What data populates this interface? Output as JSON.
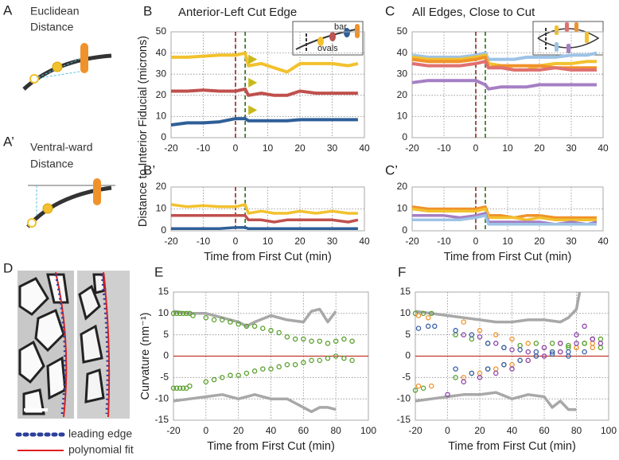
{
  "panels": {
    "A": {
      "letter": "A",
      "text": [
        "Euclidean",
        "Distance"
      ]
    },
    "A2": {
      "letter": "A’",
      "text": [
        "Ventral-ward",
        "Distance"
      ]
    },
    "D": {
      "letter": "D",
      "legend": [
        "leading edge",
        "polynomial fit"
      ]
    }
  },
  "chart_data": [
    {
      "panel": "B",
      "type": "line",
      "title": "Anterior-Left Cut Edge",
      "ylabel": "Distance to Interior Fiducial (microns)",
      "inset_labels": [
        "bar",
        "ovals"
      ],
      "x": [
        -20,
        -15,
        -10,
        -5,
        0,
        3,
        4,
        8,
        12,
        16,
        20,
        25,
        30,
        35,
        38
      ],
      "series": [
        {
          "color": "#f2c12e",
          "values": [
            38,
            38,
            38.5,
            39,
            39,
            40,
            34,
            35,
            33,
            31,
            35,
            35,
            35,
            34,
            35
          ]
        },
        {
          "color": "#c0504d",
          "values": [
            22,
            22,
            22.5,
            22,
            22,
            23,
            20,
            21,
            20,
            20,
            22,
            21,
            21,
            21,
            21
          ]
        },
        {
          "color": "#2f5f98",
          "values": [
            6,
            7,
            7,
            7.5,
            9,
            9,
            8,
            8,
            8,
            8,
            8.5,
            8.5,
            8.5,
            8.5,
            8.5
          ]
        }
      ],
      "markers": {
        "color": "#c9b81a",
        "x": [
          4,
          4,
          4
        ],
        "values": [
          37,
          26,
          13
        ]
      },
      "cut_lines": [
        {
          "x": 0,
          "color": "#8b2a1a"
        },
        {
          "x": 3,
          "color": "#2e6b1e"
        }
      ],
      "xlim": [
        -20,
        40
      ],
      "xticks": [
        -20,
        -10,
        0,
        10,
        20,
        30,
        40
      ],
      "ylim": [
        0,
        50
      ],
      "yticks": [
        0,
        10,
        20,
        30,
        40,
        50
      ],
      "grid": true
    },
    {
      "panel": "C",
      "type": "line",
      "title": "All Edges, Close to Cut",
      "x": [
        -20,
        -15,
        -10,
        -5,
        0,
        3,
        4,
        8,
        12,
        16,
        20,
        25,
        30,
        35,
        38
      ],
      "series": [
        {
          "color": "#9dc3e6",
          "values": [
            39,
            38,
            38,
            38,
            39,
            40,
            37,
            37,
            37,
            38,
            38,
            38,
            39,
            39,
            40
          ]
        },
        {
          "color": "#f2c12e",
          "values": [
            38,
            37,
            37,
            37,
            38,
            39,
            35,
            34,
            32,
            32,
            34,
            35,
            35,
            36,
            36
          ]
        },
        {
          "color": "#f0922b",
          "values": [
            37,
            36,
            36,
            36,
            37,
            38,
            33,
            34,
            34,
            34,
            34,
            33,
            33,
            33,
            33
          ]
        },
        {
          "color": "#e07070",
          "values": [
            35,
            34,
            34,
            34,
            35,
            36,
            33,
            33,
            32,
            32,
            32,
            33,
            32,
            32,
            32
          ]
        },
        {
          "color": "#a57fc4",
          "values": [
            26,
            27,
            27,
            27,
            27,
            25,
            23,
            24,
            24,
            24,
            25,
            25,
            25,
            25,
            25
          ]
        }
      ],
      "cut_lines": [
        {
          "x": 0,
          "color": "#8b2a1a"
        },
        {
          "x": 3,
          "color": "#2e6b1e"
        }
      ],
      "xlim": [
        -20,
        40
      ],
      "xticks": [
        -20,
        -10,
        0,
        10,
        20,
        30,
        40
      ],
      "ylim": [
        0,
        50
      ],
      "yticks": [
        0,
        10,
        20,
        30,
        40,
        50
      ],
      "grid": true
    },
    {
      "panel": "B’",
      "type": "line",
      "xlabel": "Time from First Cut (min)",
      "x": [
        -20,
        -15,
        -10,
        -5,
        0,
        3,
        4,
        8,
        12,
        16,
        20,
        25,
        30,
        35,
        38
      ],
      "series": [
        {
          "color": "#f2c12e",
          "values": [
            12,
            11,
            11.5,
            11,
            11,
            12,
            8,
            9,
            8,
            8,
            9,
            8,
            9,
            8,
            8
          ]
        },
        {
          "color": "#c0504d",
          "values": [
            7,
            7,
            7,
            7,
            7,
            7,
            5,
            5,
            4,
            5,
            5,
            5,
            5,
            4,
            5
          ]
        },
        {
          "color": "#2f5f98",
          "values": [
            1,
            1,
            1,
            1,
            1.5,
            1.5,
            1,
            1,
            1,
            1,
            1,
            1,
            1,
            1,
            1
          ]
        }
      ],
      "cut_lines": [
        {
          "x": 0,
          "color": "#8b2a1a"
        },
        {
          "x": 3,
          "color": "#2e6b1e"
        }
      ],
      "xlim": [
        -20,
        40
      ],
      "xticks": [
        -20,
        -10,
        0,
        10,
        20,
        30,
        40
      ],
      "ylim": [
        0,
        20
      ],
      "yticks": [
        0,
        10,
        20
      ],
      "grid": true
    },
    {
      "panel": "C’",
      "type": "line",
      "xlabel": "Time from First Cut (min)",
      "x": [
        -20,
        -15,
        -10,
        -5,
        0,
        3,
        4,
        8,
        12,
        16,
        20,
        25,
        30,
        35,
        38
      ],
      "series": [
        {
          "color": "#f0922b",
          "values": [
            11,
            10,
            10,
            10,
            10,
            11,
            7,
            7,
            6,
            7,
            7,
            6,
            6,
            6,
            6
          ]
        },
        {
          "color": "#f2c12e",
          "values": [
            10,
            9,
            9,
            9,
            9,
            10,
            6,
            6,
            6,
            5,
            6,
            5,
            5,
            5,
            5
          ]
        },
        {
          "color": "#a57fc4",
          "values": [
            7,
            7,
            7,
            6,
            7,
            8,
            4,
            4,
            4,
            4,
            4,
            3,
            4,
            3,
            4
          ]
        },
        {
          "color": "#9dc3e6",
          "values": [
            5,
            5,
            5,
            5,
            6,
            7,
            3,
            3,
            3,
            3,
            3,
            3,
            3,
            3,
            3
          ]
        }
      ],
      "cut_lines": [
        {
          "x": 0,
          "color": "#8b2a1a"
        },
        {
          "x": 3,
          "color": "#2e6b1e"
        }
      ],
      "xlim": [
        -20,
        40
      ],
      "xticks": [
        -20,
        -10,
        0,
        10,
        20,
        30,
        40
      ],
      "ylim": [
        0,
        20
      ],
      "yticks": [
        0,
        10,
        20
      ],
      "grid": true
    },
    {
      "panel": "E",
      "type": "scatter",
      "ylabel": "Curvature (nm⁻¹)",
      "xlabel": "Time from First Cut (min)",
      "reference_line": {
        "y": 0,
        "color": "#c0392b"
      },
      "series": [
        {
          "type": "line",
          "color": "#a8a8a8",
          "x": [
            -20,
            -10,
            0,
            10,
            20,
            25,
            30,
            40,
            50,
            60,
            65,
            70,
            75,
            80
          ],
          "values": [
            10.5,
            10,
            10,
            9,
            8,
            7,
            8,
            9.5,
            8.5,
            8,
            10.5,
            11,
            8,
            10.5
          ]
        },
        {
          "type": "line",
          "color": "#a8a8a8",
          "x": [
            -20,
            -10,
            0,
            10,
            20,
            30,
            40,
            50,
            55,
            60,
            65,
            70,
            75,
            80
          ],
          "values": [
            -10.5,
            -10,
            -9.5,
            -9,
            -10,
            -9,
            -10,
            -10,
            -11,
            -12,
            -13,
            -12,
            -12,
            -12.5
          ]
        },
        {
          "type": "scatter",
          "color": "#5aa02c",
          "x": [
            -20,
            -18,
            -16,
            -14,
            -12,
            -10,
            -8,
            0,
            5,
            10,
            15,
            20,
            25,
            30,
            35,
            40,
            45,
            50,
            55,
            60,
            65,
            70,
            75,
            80,
            85,
            90
          ],
          "values": [
            10,
            10,
            10,
            10,
            10,
            10,
            9.5,
            9,
            8.5,
            8.5,
            8,
            7.5,
            7,
            7,
            6.5,
            6,
            5.5,
            4.5,
            4,
            4,
            3.5,
            3.5,
            3,
            3.5,
            4,
            3.5
          ]
        },
        {
          "type": "scatter",
          "color": "#5aa02c",
          "x": [
            -20,
            -18,
            -16,
            -14,
            -12,
            -10,
            0,
            5,
            10,
            15,
            20,
            25,
            30,
            35,
            40,
            45,
            50,
            55,
            60,
            65,
            70,
            75,
            80,
            85,
            90
          ],
          "values": [
            -7.5,
            -7.5,
            -7.5,
            -7.5,
            -7.5,
            -7,
            -6,
            -5.5,
            -5,
            -4.5,
            -4.5,
            -4,
            -3.5,
            -3,
            -3,
            -2.5,
            -2,
            -2,
            -1.5,
            -1,
            -1,
            -0.5,
            0,
            -0.5,
            -1
          ]
        }
      ],
      "xlim": [
        -20,
        100
      ],
      "xticks": [
        -20,
        0,
        20,
        40,
        60,
        80,
        100
      ],
      "ylim": [
        -15,
        15
      ],
      "yticks": [
        -15,
        -10,
        -5,
        0,
        5,
        10,
        15
      ],
      "grid": true
    },
    {
      "panel": "F",
      "type": "scatter",
      "xlabel": "Time from First Cut (min)",
      "reference_line": {
        "y": 0,
        "color": "#c0392b"
      },
      "series": [
        {
          "type": "line",
          "color": "#a8a8a8",
          "x": [
            -20,
            -10,
            0,
            10,
            20,
            30,
            40,
            50,
            60,
            70,
            75,
            80,
            82
          ],
          "values": [
            10.5,
            10,
            9.5,
            9,
            8.5,
            8,
            8,
            8.5,
            8.5,
            8,
            9,
            11,
            15
          ]
        },
        {
          "type": "line",
          "color": "#a8a8a8",
          "x": [
            -20,
            -10,
            0,
            10,
            20,
            30,
            40,
            50,
            60,
            65,
            70,
            75,
            80
          ],
          "values": [
            -10.5,
            -10,
            -9.5,
            -9,
            -9,
            -8.5,
            -10,
            -9,
            -9.5,
            -12,
            -10.5,
            -12.5,
            -12.5
          ]
        },
        {
          "type": "scatter",
          "color": "#5aa02c",
          "x": [
            -20,
            -15,
            -10,
            5,
            15,
            25,
            35,
            45,
            55,
            65,
            75,
            85,
            95,
            -20,
            -15,
            5,
            15,
            25,
            35,
            45,
            55,
            65,
            75,
            85,
            95
          ],
          "values": [
            10,
            10,
            10,
            5,
            4,
            3,
            2,
            2.5,
            3,
            3,
            2.5,
            3,
            4,
            -8,
            -7.5,
            -5,
            -4,
            -3,
            -2,
            -1,
            0,
            1,
            2,
            3,
            2
          ]
        },
        {
          "type": "scatter",
          "color": "#f0922b",
          "x": [
            -18,
            -12,
            10,
            20,
            30,
            40,
            50,
            60,
            70,
            80,
            90,
            -18,
            -10,
            10,
            20,
            30,
            40,
            50,
            60,
            70,
            80,
            90
          ],
          "values": [
            9.5,
            9,
            8,
            6,
            5,
            4,
            3,
            2,
            3,
            2,
            3,
            -7,
            -7,
            -5,
            -4,
            -3,
            -2,
            -1,
            0,
            1,
            2,
            2
          ]
        },
        {
          "type": "scatter",
          "color": "#3a5fa8",
          "x": [
            -18,
            -12,
            -8,
            5,
            15,
            25,
            35,
            45,
            55,
            65,
            75,
            85,
            5,
            15,
            25,
            35,
            45,
            55,
            65,
            75
          ],
          "values": [
            6.5,
            7,
            7,
            6,
            5,
            3,
            2,
            1.5,
            1,
            0.5,
            1,
            1,
            -3,
            -4,
            -3,
            -2,
            -1,
            0,
            1,
            0
          ]
        },
        {
          "type": "scatter",
          "color": "#8e44ad",
          "x": [
            10,
            20,
            30,
            40,
            50,
            60,
            70,
            80,
            85,
            90,
            95,
            0,
            10,
            20,
            30,
            40,
            50,
            60,
            70,
            80,
            90
          ],
          "values": [
            5,
            4.5,
            3,
            1.5,
            1,
            2,
            3,
            5,
            7,
            4,
            3,
            -9,
            -6,
            -5,
            -4,
            -3,
            -1,
            0,
            1,
            3,
            4
          ]
        }
      ],
      "xlim": [
        -20,
        100
      ],
      "xticks": [
        -20,
        0,
        20,
        40,
        60,
        80,
        100
      ],
      "ylim": [
        -15,
        15
      ],
      "yticks": [
        -15,
        -10,
        -5,
        0,
        5,
        10,
        15
      ],
      "grid": true
    }
  ]
}
